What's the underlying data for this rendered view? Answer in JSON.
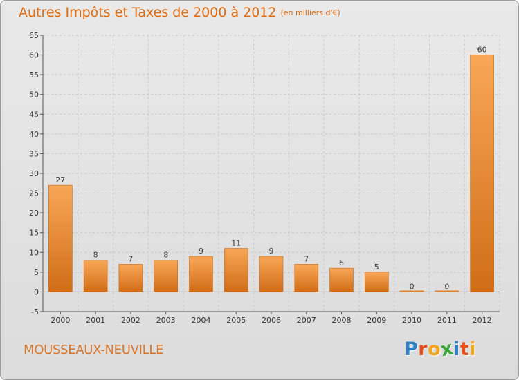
{
  "header": {
    "title": "Autres Impôts et Taxes de 2000 à 2012",
    "subtitle": "(en milliers d'€)"
  },
  "footer": {
    "commune": "MOUSSEAUX-NEUVILLE",
    "logo_letters": [
      "P",
      "r",
      "o",
      "x",
      "i",
      "t",
      "i"
    ],
    "logo_colors": [
      "#2f7fc1",
      "#e8501e",
      "#f0a51a",
      "#3aa535",
      "#2f7fc1",
      "#e8501e",
      "#f0a51a"
    ]
  },
  "colors": {
    "bar_light": "#f8a757",
    "bar_dark": "#d06d18",
    "grid": "#c7c7c7",
    "axis": "#555555",
    "accent": "#e06a10"
  },
  "chart_data": {
    "type": "bar",
    "title": "Autres Impôts et Taxes de 2000 à 2012",
    "subtitle": "(en milliers d'€)",
    "categories": [
      "2000",
      "2001",
      "2002",
      "2003",
      "2004",
      "2005",
      "2006",
      "2007",
      "2008",
      "2009",
      "2010",
      "2011",
      "2012"
    ],
    "values": [
      27,
      8,
      7,
      8,
      9,
      11,
      9,
      7,
      6,
      5,
      0,
      0,
      60
    ],
    "ylim": [
      -5,
      65
    ],
    "yticks": [
      -5,
      0,
      5,
      10,
      15,
      20,
      25,
      30,
      35,
      40,
      45,
      50,
      55,
      60,
      65
    ],
    "grid": true,
    "legend": "none",
    "xlabel": "",
    "ylabel": ""
  }
}
